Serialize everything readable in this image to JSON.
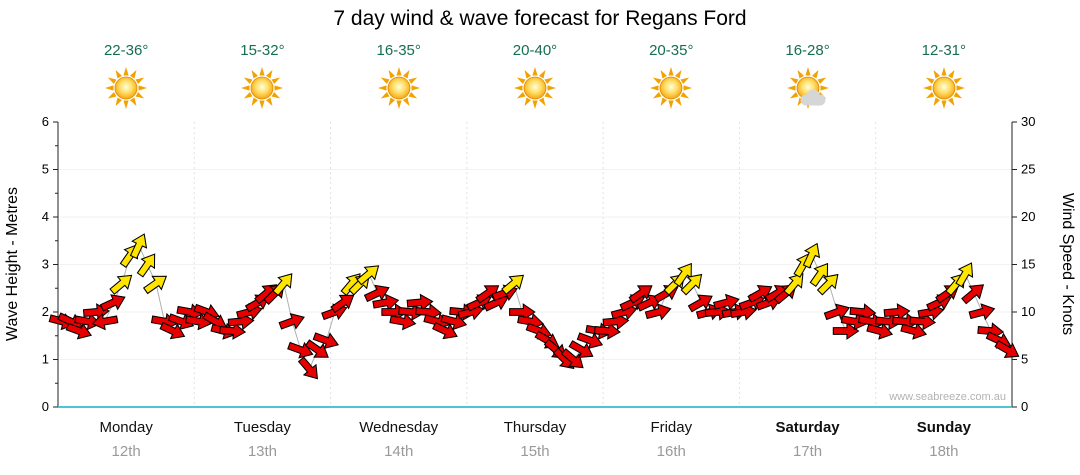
{
  "title": "7 day wind & wave forecast for Regans Ford",
  "watermark": "www.seabreeze.com.au",
  "axes": {
    "left_label": "Wave Height - Metres",
    "right_label": "Wind Speed - Knots",
    "left_ticks": [
      0,
      1,
      2,
      3,
      4,
      5,
      6
    ],
    "right_ticks": [
      0,
      5,
      10,
      15,
      20,
      25,
      30
    ]
  },
  "days": [
    {
      "name": "Monday",
      "date": "12th",
      "temp": "22-36°",
      "icon": "sunny",
      "weekend": false
    },
    {
      "name": "Tuesday",
      "date": "13th",
      "temp": "15-32°",
      "icon": "sunny",
      "weekend": false
    },
    {
      "name": "Wednesday",
      "date": "14th",
      "temp": "16-35°",
      "icon": "sunny",
      "weekend": false
    },
    {
      "name": "Thursday",
      "date": "15th",
      "temp": "20-40°",
      "icon": "sunny",
      "weekend": false
    },
    {
      "name": "Friday",
      "date": "16th",
      "temp": "20-35°",
      "icon": "sunny",
      "weekend": false
    },
    {
      "name": "Saturday",
      "date": "17th",
      "temp": "16-28°",
      "icon": "sun-cloud",
      "weekend": true
    },
    {
      "name": "Sunday",
      "date": "18th",
      "temp": "12-31°",
      "icon": "sunny",
      "weekend": true
    }
  ],
  "chart_data": {
    "type": "wind-arrows",
    "x_categories": [
      "Monday 12th",
      "Tuesday 13th",
      "Wednesday 14th",
      "Thursday 15th",
      "Friday 16th",
      "Saturday 17th",
      "Sunday 18th"
    ],
    "wave_axis": {
      "label": "Wave Height - Metres",
      "range": [
        0,
        6
      ]
    },
    "wind_axis": {
      "label": "Wind Speed - Knots",
      "range": [
        0,
        30
      ]
    },
    "yellow_threshold_knots": 13,
    "rotation_note": "0 = arrow points right on screen, positive degrees rotate clockwise",
    "colors": {
      "light_wind": "#e60000",
      "strong_wind": "#ffe400",
      "axis_bottom": "#4fc3d9",
      "trace_line": "#b0b0b0"
    },
    "days_series": [
      {
        "day": "Monday",
        "wind_knots": [
          9,
          9,
          8,
          9,
          10,
          9,
          11,
          13,
          16,
          17,
          15,
          13,
          9,
          8,
          9,
          10
        ],
        "arrow_rotation_deg": [
          15,
          25,
          20,
          10,
          -5,
          170,
          -25,
          -40,
          -55,
          -65,
          -55,
          -35,
          10,
          25,
          20,
          10
        ]
      },
      {
        "day": "Tuesday",
        "wind_knots": [
          9,
          10,
          9,
          8,
          8,
          9,
          10,
          11,
          12,
          12,
          13,
          9,
          6,
          4,
          6,
          7
        ],
        "arrow_rotation_deg": [
          10,
          20,
          30,
          15,
          5,
          -5,
          -15,
          -30,
          -40,
          -45,
          -50,
          -20,
          20,
          50,
          35,
          20
        ]
      },
      {
        "day": "Wednesday",
        "wind_knots": [
          10,
          11,
          13,
          13,
          14,
          12,
          11,
          10,
          9,
          10,
          11,
          10,
          9,
          8,
          9,
          10
        ],
        "arrow_rotation_deg": [
          -20,
          -35,
          -50,
          -45,
          -40,
          -25,
          -10,
          0,
          10,
          5,
          -5,
          5,
          15,
          25,
          15,
          5
        ]
      },
      {
        "day": "Thursday",
        "wind_knots": [
          10,
          11,
          12,
          11,
          12,
          13,
          10,
          9,
          8,
          7,
          6,
          5,
          5,
          6,
          7,
          8
        ],
        "arrow_rotation_deg": [
          -15,
          -25,
          -35,
          -25,
          -20,
          -40,
          0,
          10,
          20,
          30,
          40,
          45,
          40,
          30,
          20,
          10
        ]
      },
      {
        "day": "Friday",
        "wind_knots": [
          8,
          9,
          10,
          11,
          12,
          11,
          10,
          12,
          13,
          14,
          13,
          11,
          10,
          10,
          11,
          10
        ],
        "arrow_rotation_deg": [
          5,
          -5,
          -15,
          -25,
          -35,
          -25,
          -15,
          -30,
          -45,
          -55,
          -45,
          -30,
          -15,
          -5,
          -15,
          -10
        ]
      },
      {
        "day": "Saturday",
        "wind_knots": [
          10,
          11,
          12,
          11,
          12,
          12,
          13,
          15,
          16,
          14,
          13,
          10,
          8,
          9,
          10,
          9
        ],
        "arrow_rotation_deg": [
          -10,
          -20,
          -30,
          -20,
          -30,
          -40,
          -50,
          -60,
          -65,
          -55,
          -45,
          -20,
          0,
          10,
          5,
          10
        ]
      },
      {
        "day": "Sunday",
        "wind_knots": [
          8,
          9,
          10,
          9,
          8,
          9,
          10,
          11,
          12,
          13,
          14,
          12,
          10,
          8,
          7,
          6
        ],
        "arrow_rotation_deg": [
          15,
          5,
          -5,
          5,
          15,
          5,
          -10,
          -25,
          -35,
          -50,
          -60,
          -40,
          -15,
          5,
          25,
          30
        ]
      }
    ]
  }
}
